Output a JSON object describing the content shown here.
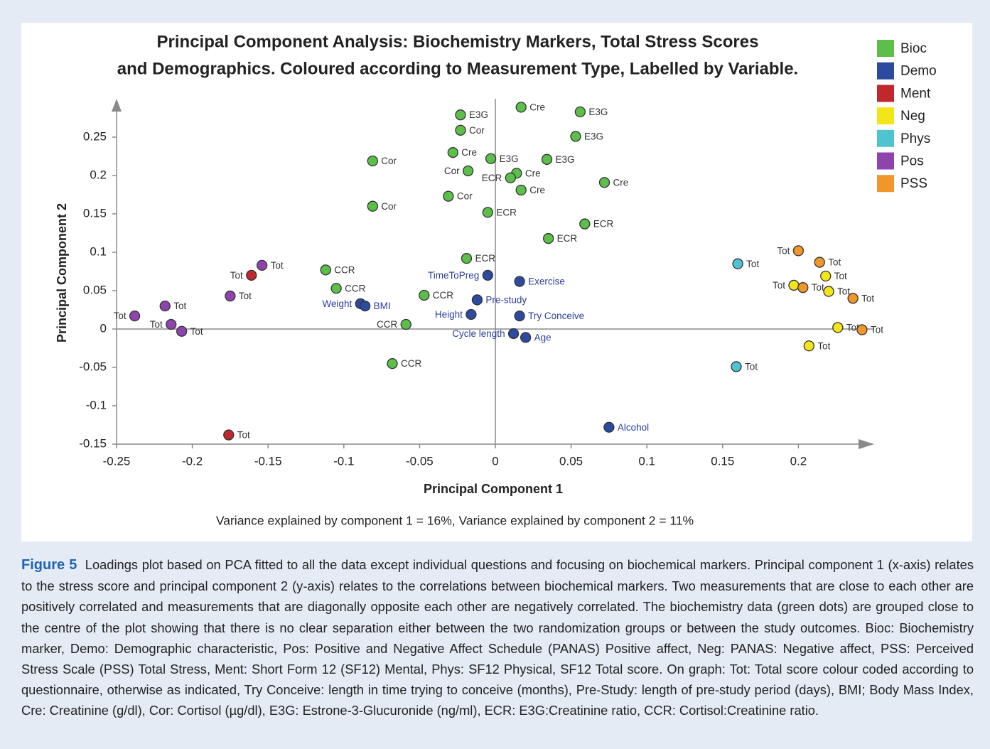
{
  "chart_data": {
    "type": "scatter",
    "title": [
      "Principal Component Analysis: Biochemistry Markers, Total Stress Scores",
      "and Demographics.  Coloured according to Measurement Type, Labelled by Variable."
    ],
    "x_label": "Principal Component 1",
    "y_label": "Principal Component 2",
    "annotation": "Variance explained by component 1 = 16%,   Variance explained by component 2 = 11%",
    "xlim": [
      -0.25,
      0.25
    ],
    "ylim": [
      -0.15,
      0.3
    ],
    "xticks": [
      -0.25,
      -0.2,
      -0.15,
      -0.1,
      -0.05,
      0,
      0.05,
      0.1,
      0.15,
      0.2
    ],
    "yticks": [
      -0.15,
      -0.1,
      -0.05,
      0,
      0.05,
      0.1,
      0.15,
      0.2,
      0.25
    ],
    "legend": "upper right",
    "series": [
      {
        "name": "Bioc",
        "color": "#5bbf4a",
        "x": [
          -0.023,
          0.017,
          0.056,
          -0.023,
          0.053,
          -0.028,
          -0.003,
          0.034,
          -0.081,
          -0.018,
          0.014,
          0.01,
          0.017,
          0.072,
          -0.031,
          -0.081,
          -0.005,
          0.059,
          0.035,
          -0.019,
          -0.112,
          -0.105,
          -0.047,
          -0.059,
          -0.068
        ],
        "values": [
          0.279,
          0.289,
          0.283,
          0.259,
          0.251,
          0.23,
          0.222,
          0.221,
          0.219,
          0.206,
          0.203,
          0.197,
          0.181,
          0.191,
          0.173,
          0.16,
          0.152,
          0.137,
          0.118,
          0.092,
          0.077,
          0.053,
          0.044,
          0.006,
          -0.045
        ],
        "labels": [
          "E3G",
          "Cre",
          "E3G",
          "Cor",
          "E3G",
          "Cre",
          "E3G",
          "E3G",
          "Cor",
          "Cor",
          "Cre",
          "ECR",
          "Cre",
          "Cre",
          "Cor",
          "Cor",
          "ECR",
          "ECR",
          "ECR",
          "ECR",
          "CCR",
          "CCR",
          "CCR",
          "CCR",
          "CCR"
        ]
      },
      {
        "name": "Demo",
        "color": "#2c4a9e",
        "x": [
          -0.005,
          0.016,
          -0.089,
          -0.086,
          -0.012,
          -0.016,
          0.016,
          0.012,
          0.02,
          0.075
        ],
        "values": [
          0.07,
          0.062,
          0.033,
          0.03,
          0.038,
          0.019,
          0.017,
          -0.006,
          -0.011,
          -0.128
        ],
        "labels": [
          "TimeToPreg",
          "Exercise",
          "Weight",
          "BMI",
          "Pre-study",
          "Height",
          "Try Conceive",
          "Cycle length",
          "Age",
          "Alcohol"
        ]
      },
      {
        "name": "Ment",
        "color": "#c0282d",
        "x": [
          -0.161,
          -0.176
        ],
        "values": [
          0.07,
          -0.138
        ],
        "labels": [
          "Tot",
          "Tot"
        ]
      },
      {
        "name": "Neg",
        "color": "#f2e51a",
        "x": [
          0.197,
          0.218,
          0.22,
          0.226,
          0.207
        ],
        "values": [
          0.057,
          0.069,
          0.049,
          0.002,
          -0.022
        ],
        "labels": [
          "Tot",
          "Tot",
          "Tot",
          "Tot",
          "Tot"
        ]
      },
      {
        "name": "Phys",
        "color": "#4fc3d0",
        "x": [
          0.16,
          0.159
        ],
        "values": [
          0.085,
          -0.049
        ],
        "labels": [
          "Tot",
          "Tot"
        ]
      },
      {
        "name": "Pos",
        "color": "#8e44ad",
        "x": [
          -0.154,
          -0.175,
          -0.218,
          -0.238,
          -0.214,
          -0.207
        ],
        "values": [
          0.083,
          0.043,
          0.03,
          0.017,
          0.006,
          -0.003
        ],
        "labels": [
          "Tot",
          "Tot",
          "Tot",
          "Tot",
          "Tot",
          "Tot"
        ]
      },
      {
        "name": "PSS",
        "color": "#f0962a",
        "x": [
          0.2,
          0.214,
          0.203,
          0.236,
          0.242
        ],
        "values": [
          0.102,
          0.087,
          0.054,
          0.04,
          -0.001
        ],
        "labels": [
          "Tot",
          "Tot",
          "Tot",
          "Tot",
          "Tot"
        ]
      }
    ]
  },
  "caption": {
    "label": "Figure 5",
    "text": "Loadings plot based on PCA fitted to all the data except individual questions and focusing on biochemical markers. Principal component 1 (x-axis) relates to the stress score and principal component 2 (y-axis) relates to the correlations between biochemical markers. Two measurements that are close to each other are positively correlated and measurements that are diagonally opposite each other are negatively correlated. The biochemistry data (green dots) are grouped close to the centre of the plot showing that there is no clear separation either between the two randomization groups or between the study outcomes. Bioc: Biochemistry marker, Demo: Demographic characteristic, Pos: Positive and Negative Affect Schedule (PANAS) Positive affect, Neg: PANAS: Negative affect, PSS: Perceived Stress Scale (PSS) Total Stress, Ment: Short Form 12 (SF12) Mental, Phys: SF12 Physical, SF12 Total score. On graph: Tot: Total score colour coded according to questionnaire, otherwise as indicated, Try Conceive: length in time trying to conceive (months), Pre-Study: length of pre-study period (days), BMI; Body Mass Index, Cre: Creatinine (g/dl), Cor: Cortisol (µg/dl), E3G: Estrone-3-Glucuronide (ng/ml), ECR: E3G:Creatinine ratio, CCR: Cortisol:Creatinine ratio."
  }
}
